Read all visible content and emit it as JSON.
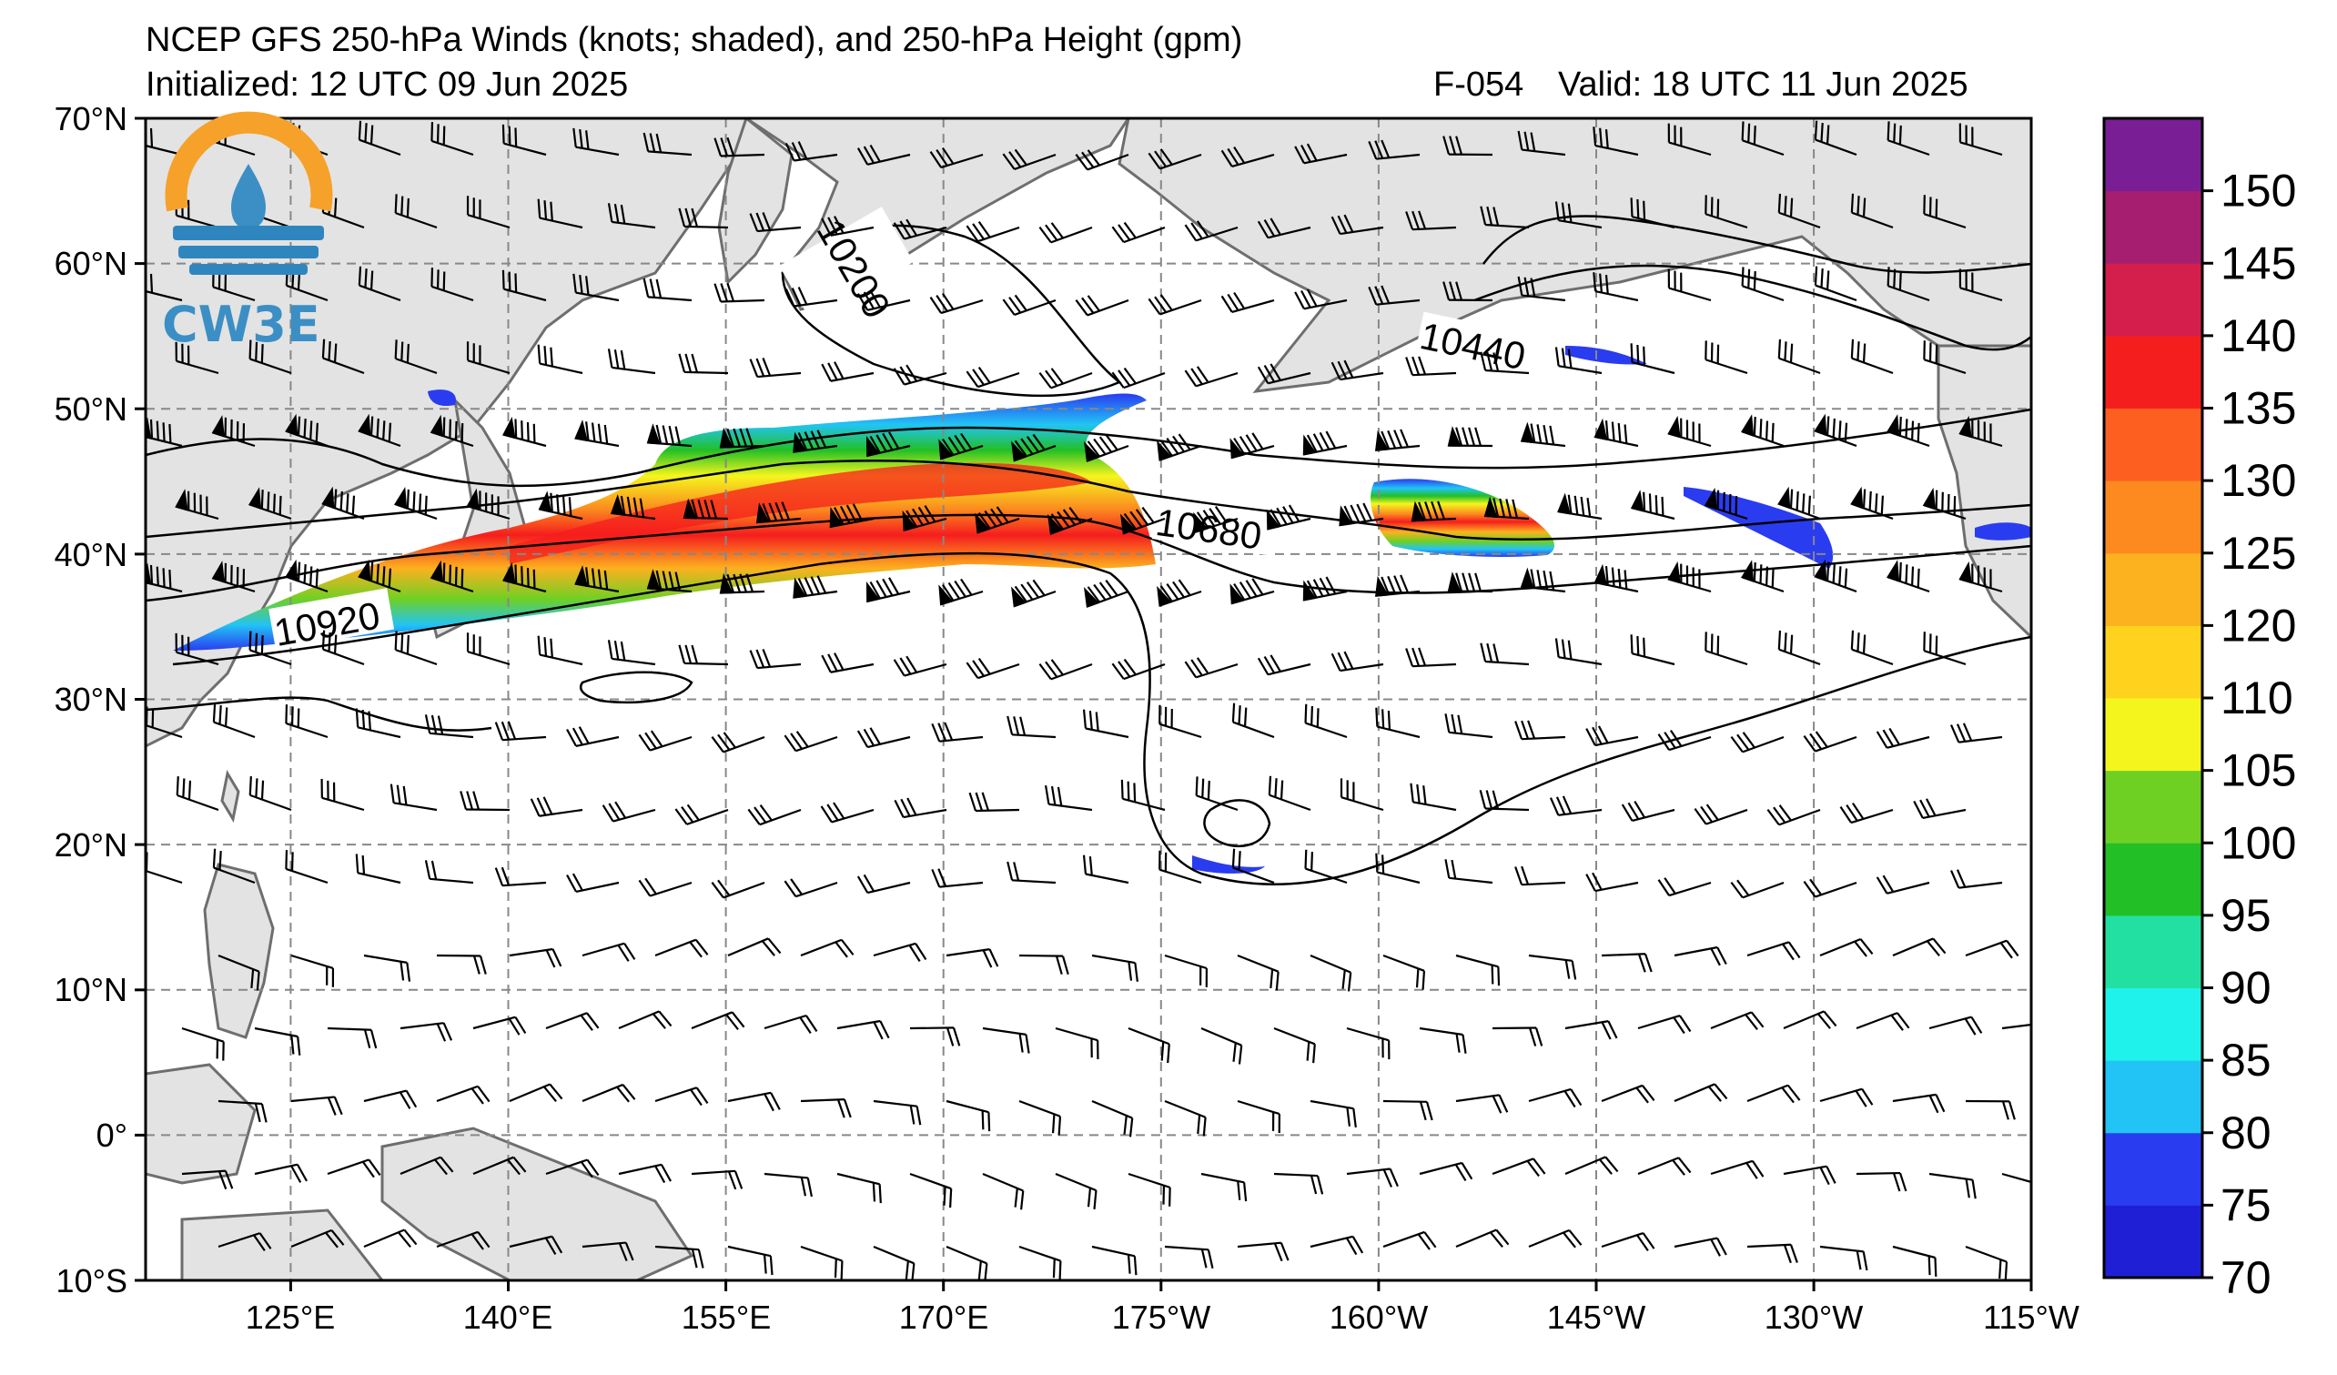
{
  "header": {
    "title": "NCEP GFS 250-hPa Winds (knots; shaded), and 250-hPa Height (gpm)",
    "initialized": "Initialized: 12 UTC 09 Jun 2025",
    "forecast_hour": "F-054",
    "valid": "Valid: 18 UTC 11 Jun 2025"
  },
  "logo": {
    "text": "CW3E",
    "colors": {
      "ring": "#f5a12a",
      "drop": "#3b8fc4",
      "waves": "#2f86bf"
    }
  },
  "map": {
    "projection": "cylindrical",
    "extent": {
      "lon_west": 115,
      "lon_east": 245,
      "lat_south": -10,
      "lat_north": 70
    },
    "land_color": "#e3e3e3",
    "grid": "dashed",
    "lat_ticks": [
      "70°N",
      "60°N",
      "50°N",
      "40°N",
      "30°N",
      "20°N",
      "10°N",
      "0°",
      "10°S"
    ],
    "lon_ticks": [
      "125°E",
      "140°E",
      "155°E",
      "170°E",
      "175°W",
      "160°W",
      "145°W",
      "130°W",
      "115°W"
    ],
    "contour_labels": [
      "10200",
      "10440",
      "10680",
      "10920"
    ]
  },
  "colorbar": {
    "ticks": [
      "70",
      "75",
      "80",
      "85",
      "90",
      "95",
      "100",
      "105",
      "110",
      "120",
      "125",
      "130",
      "135",
      "140",
      "145",
      "150"
    ],
    "colors": [
      "#1f1fd6",
      "#2a3cf0",
      "#22c4f5",
      "#1ef2ea",
      "#22e0a2",
      "#22bf26",
      "#6fd024",
      "#f5f51e",
      "#ffd21e",
      "#fcb11f",
      "#fc8a1f",
      "#fc5f1f",
      "#f51e1e",
      "#d41e4c",
      "#a51e70",
      "#7a1e96"
    ]
  }
}
